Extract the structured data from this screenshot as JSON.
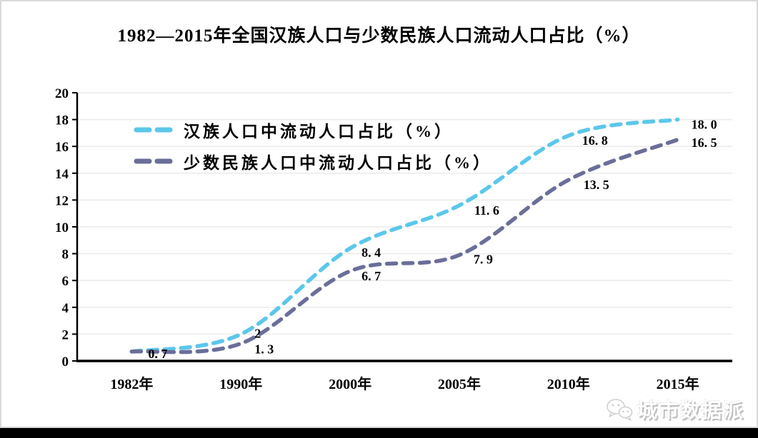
{
  "title": "1982—2015年全国汉族人口与少数民族人口流动人口占比（%）",
  "chart_data": {
    "type": "line",
    "title": "1982—2015年全国汉族人口与少数民族人口流动人口占比（%）",
    "categories": [
      "1982年",
      "1990年",
      "2000年",
      "2005年",
      "2010年",
      "2015年"
    ],
    "series": [
      {
        "name": "汉族人口中流动人口占比（%）",
        "color": "#5BC7EA",
        "values": [
          0.7,
          2,
          8.4,
          11.6,
          16.8,
          18.0
        ],
        "point_labels": [
          "0. 7",
          "2",
          "8. 4",
          "11. 6",
          "16. 8",
          "18. 0"
        ]
      },
      {
        "name": "少数民族人口中流动人口占比（%）",
        "color": "#6A6E99",
        "values": [
          0.7,
          1.3,
          6.7,
          7.9,
          13.5,
          16.5
        ],
        "point_labels": [
          "",
          "1. 3",
          "6. 7",
          "7. 9",
          "13. 5",
          "16. 5"
        ]
      }
    ],
    "ylim": [
      0,
      20
    ],
    "yticks": [
      0,
      2,
      4,
      6,
      8,
      10,
      12,
      14,
      16,
      18,
      20
    ],
    "grid": true,
    "smooth": true,
    "line_style": "dashed",
    "legend_position": "top-left-inside"
  },
  "watermark": {
    "text": "城市数据派",
    "icon": "wechat-logo"
  },
  "colors": {
    "han_line": "#5BC7EA",
    "minority_line": "#6A6E99",
    "grid": "#EDEDED",
    "axis": "#000000",
    "background": "#FFFFFF",
    "border": "#D9D9D9",
    "bottom_bar": "#000000",
    "text": "#000000"
  }
}
